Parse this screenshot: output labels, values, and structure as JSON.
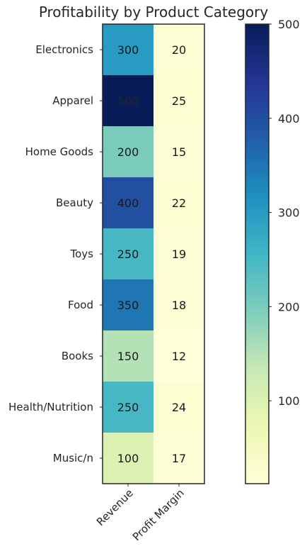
{
  "chart_data": {
    "type": "heatmap",
    "title": "Profitability by Product Category",
    "rows": [
      "Electronics",
      "Apparel",
      "Home Goods",
      "Beauty",
      "Toys",
      "Food",
      "Books",
      "Health/Nutrition",
      "Music/n"
    ],
    "columns": [
      "Revenue",
      "Profit Margin"
    ],
    "values": [
      [
        300,
        20
      ],
      [
        500,
        25
      ],
      [
        200,
        15
      ],
      [
        400,
        22
      ],
      [
        250,
        19
      ],
      [
        350,
        18
      ],
      [
        150,
        12
      ],
      [
        250,
        24
      ],
      [
        100,
        17
      ]
    ],
    "colormap": "YlGnBu",
    "vmin": 12,
    "vmax": 500,
    "colorbar_ticks": [
      100,
      200,
      300,
      400,
      500
    ],
    "grid": false
  }
}
